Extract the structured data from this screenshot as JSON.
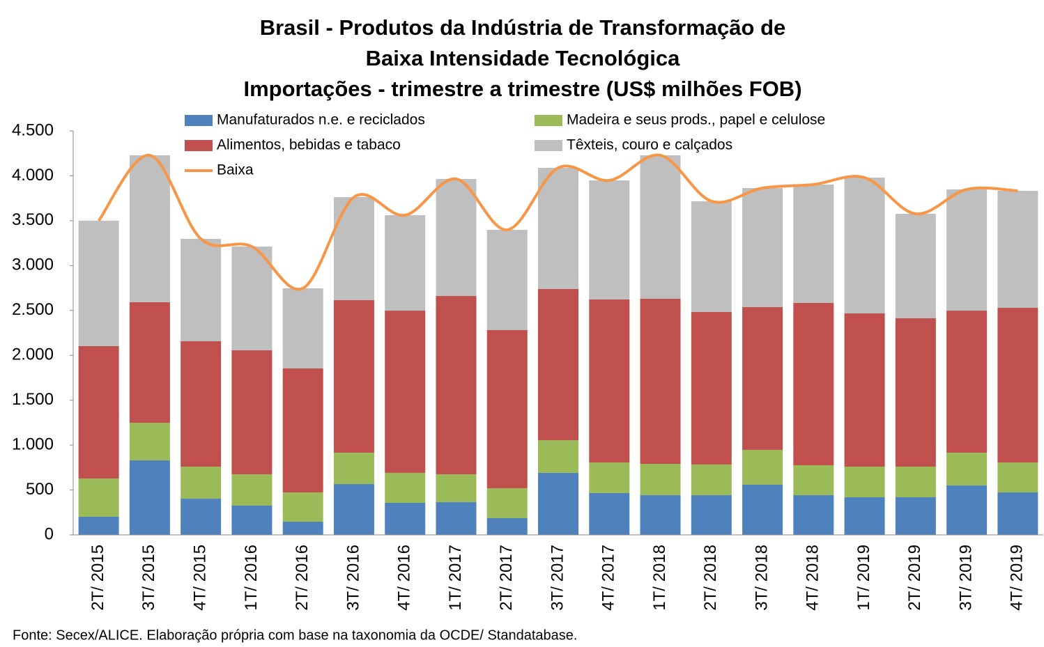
{
  "chart_data": {
    "type": "stacked-bar-line",
    "title": [
      "Brasil - Produtos da Indústria de Transformação de",
      "Baixa Intensidade Tecnológica",
      "Importações - trimestre a trimestre (US$ milhões FOB)"
    ],
    "footnote": "Fonte: Secex/ALICE. Elaboração própria com base na taxonomia da OCDE/ Standatabase.",
    "categories": [
      "2T/ 2015",
      "3T/ 2015",
      "4T/ 2015",
      "1T/ 2016",
      "2T/ 2016",
      "3T/ 2016",
      "4T/ 2016",
      "1T/ 2017",
      "2T/ 2017",
      "3T/ 2017",
      "4T/ 2017",
      "1T/ 2018",
      "2T/ 2018",
      "3T/ 2018",
      "4T/ 2018",
      "1T/ 2019",
      "2T/ 2019",
      "3T/ 2019",
      "4T/ 2019"
    ],
    "series": [
      {
        "name": "Manufaturados n.e. e reciclados",
        "color": "#4f81bd",
        "values": [
          202,
          830,
          403,
          326,
          147,
          566,
          357,
          365,
          186,
          691,
          466,
          442,
          442,
          559,
          442,
          419,
          419,
          551,
          473
        ]
      },
      {
        "name": "Madeira e seus prods., papel e celulose",
        "color": "#9bbb59",
        "values": [
          426,
          419,
          357,
          349,
          326,
          350,
          334,
          310,
          334,
          364,
          341,
          349,
          342,
          388,
          334,
          341,
          341,
          365,
          334
        ]
      },
      {
        "name": "Alimentos, bebidas e tabaco",
        "color": "#c0504d",
        "values": [
          1475,
          1343,
          1397,
          1381,
          1381,
          1699,
          1807,
          1986,
          1761,
          1684,
          1816,
          1839,
          1699,
          1590,
          1808,
          1707,
          1653,
          1582,
          1722
        ]
      },
      {
        "name": "Têxteis, couro e calçados",
        "color": "#bfbfbf",
        "values": [
          1397,
          1637,
          1141,
          1156,
          893,
          1148,
          1063,
          1304,
          1117,
          1350,
          1326,
          1599,
          1234,
          1327,
          1319,
          1513,
          1164,
          1351,
          1304
        ]
      },
      {
        "name": "Baixa",
        "color": "#f79646",
        "type": "line",
        "values": [
          3500,
          4229,
          3298,
          3212,
          2747,
          3763,
          3561,
          3965,
          3398,
          4089,
          3949,
          4229,
          3717,
          3864,
          3903,
          3980,
          3577,
          3849,
          3833
        ]
      }
    ],
    "ylim": [
      0,
      4500
    ],
    "yticks": [
      0,
      500,
      {
        "value": 1000,
        "label": "1.000"
      },
      {
        "value": 1500,
        "label": "1.500"
      },
      {
        "value": 2000,
        "label": "2.000"
      },
      {
        "value": 2500,
        "label": "2.500"
      },
      {
        "value": 3000,
        "label": "3.000"
      },
      {
        "value": 3500,
        "label": "3.500"
      },
      {
        "value": 4000,
        "label": "4.000"
      },
      {
        "value": 4500,
        "label": "4.500"
      }
    ]
  }
}
